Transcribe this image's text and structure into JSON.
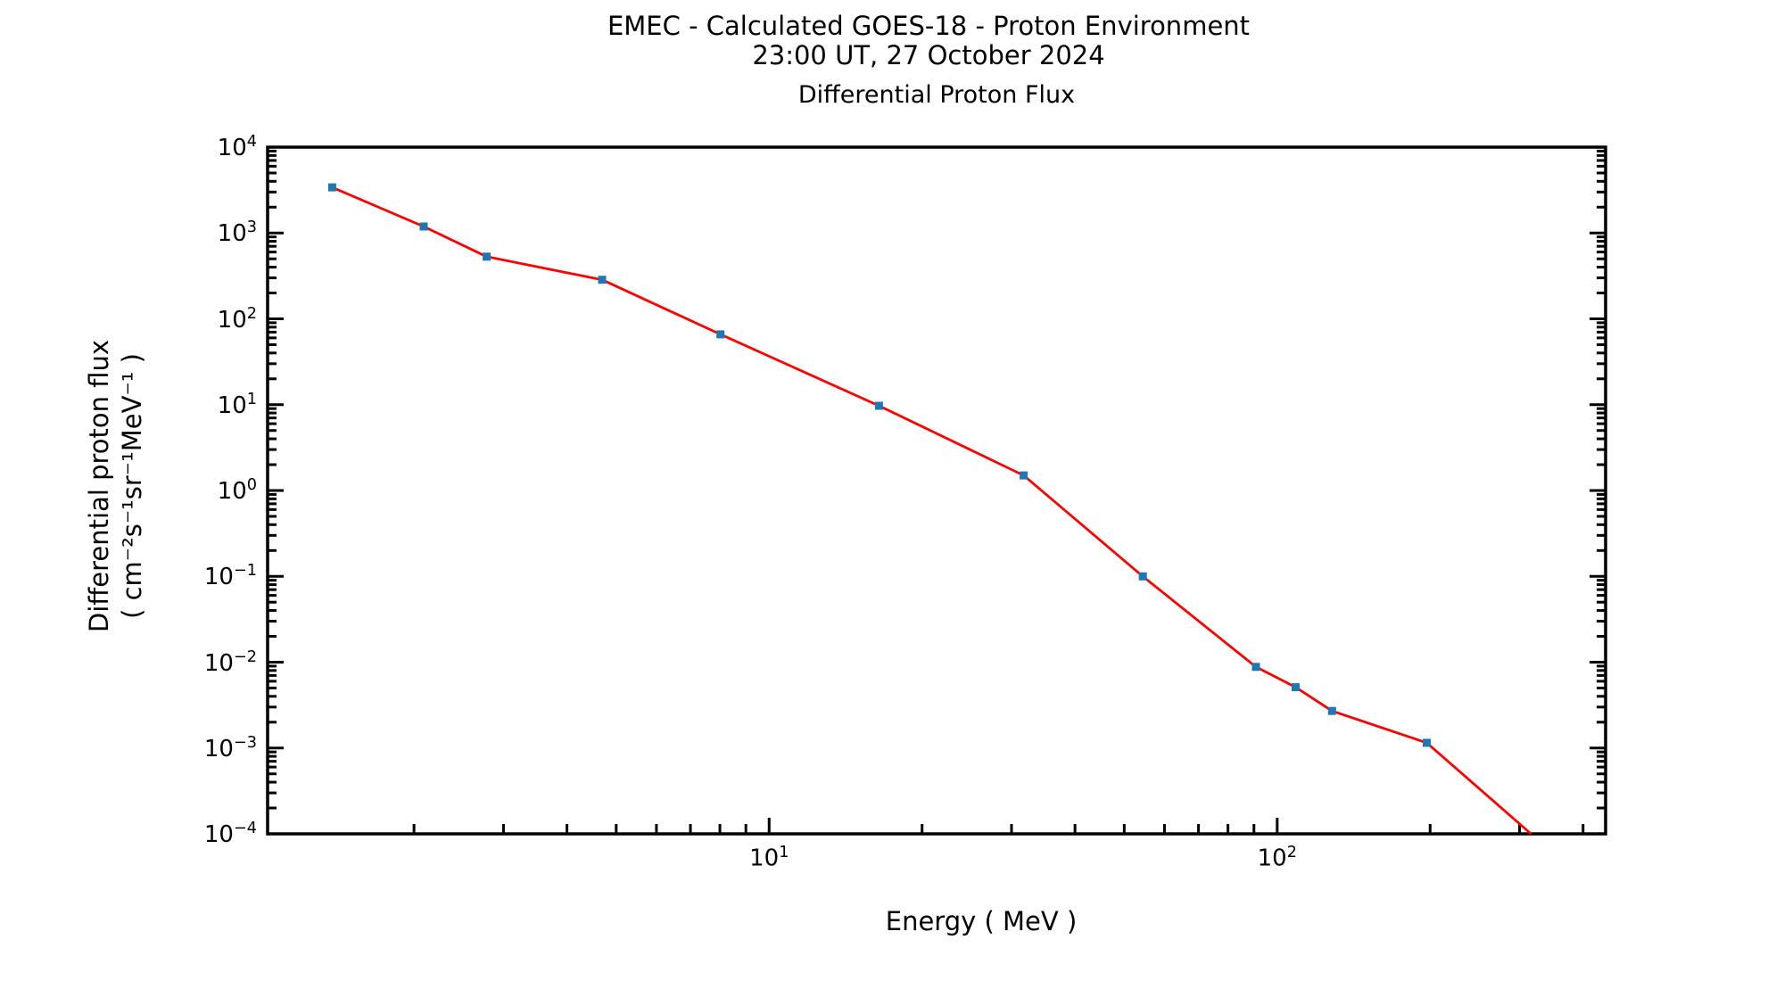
{
  "figure": {
    "title_line1": "EMEC - Calculated GOES-18 - Proton Environment",
    "title_line2": "23:00 UT, 27 October 2024",
    "subtitle": "Differential Proton Flux",
    "xlabel": "Energy ( MeV )",
    "ylabel_line1": "Differential proton flux",
    "ylabel_line2": "( cm⁻²s⁻¹sr⁻¹MeV⁻¹ )"
  },
  "chart_data": {
    "type": "line",
    "title": "Differential Proton Flux",
    "xlabel": "Energy ( MeV )",
    "ylabel": "Differential proton flux ( cm^-2 s^-1 sr^-1 MeV^-1 )",
    "x_scale": "log",
    "y_scale": "log",
    "xlim": [
      1.03,
      443
    ],
    "ylim": [
      0.0001,
      10000
    ],
    "grid": false,
    "legend": null,
    "x_major_tick_exponents": [
      1,
      2
    ],
    "x_tick_labels": [
      "10¹",
      "10²"
    ],
    "y_major_tick_exponents": [
      4,
      3,
      2,
      1,
      0,
      -1,
      -2,
      -3,
      -4
    ],
    "y_tick_labels": [
      "10⁴",
      "10³",
      "10²",
      "10¹",
      "10⁰",
      "10⁻¹",
      "10⁻²",
      "10⁻³",
      "10⁻⁴"
    ],
    "series": [
      {
        "name": "differential-proton-flux",
        "marker": "square",
        "marker_color": "#1f77b4",
        "line_color": "#ff0000",
        "x": [
          1.38,
          2.09,
          2.78,
          4.69,
          8.02,
          16.45,
          31.7,
          54.4,
          90.8,
          108.7,
          128.2,
          197.0
        ],
        "y": [
          3400,
          1190,
          530,
          285,
          66,
          9.7,
          1.5,
          0.1,
          0.0088,
          0.0051,
          0.0027,
          0.00115
        ],
        "line_tail": {
          "x": 316.0,
          "y": 0.0001
        }
      }
    ]
  }
}
